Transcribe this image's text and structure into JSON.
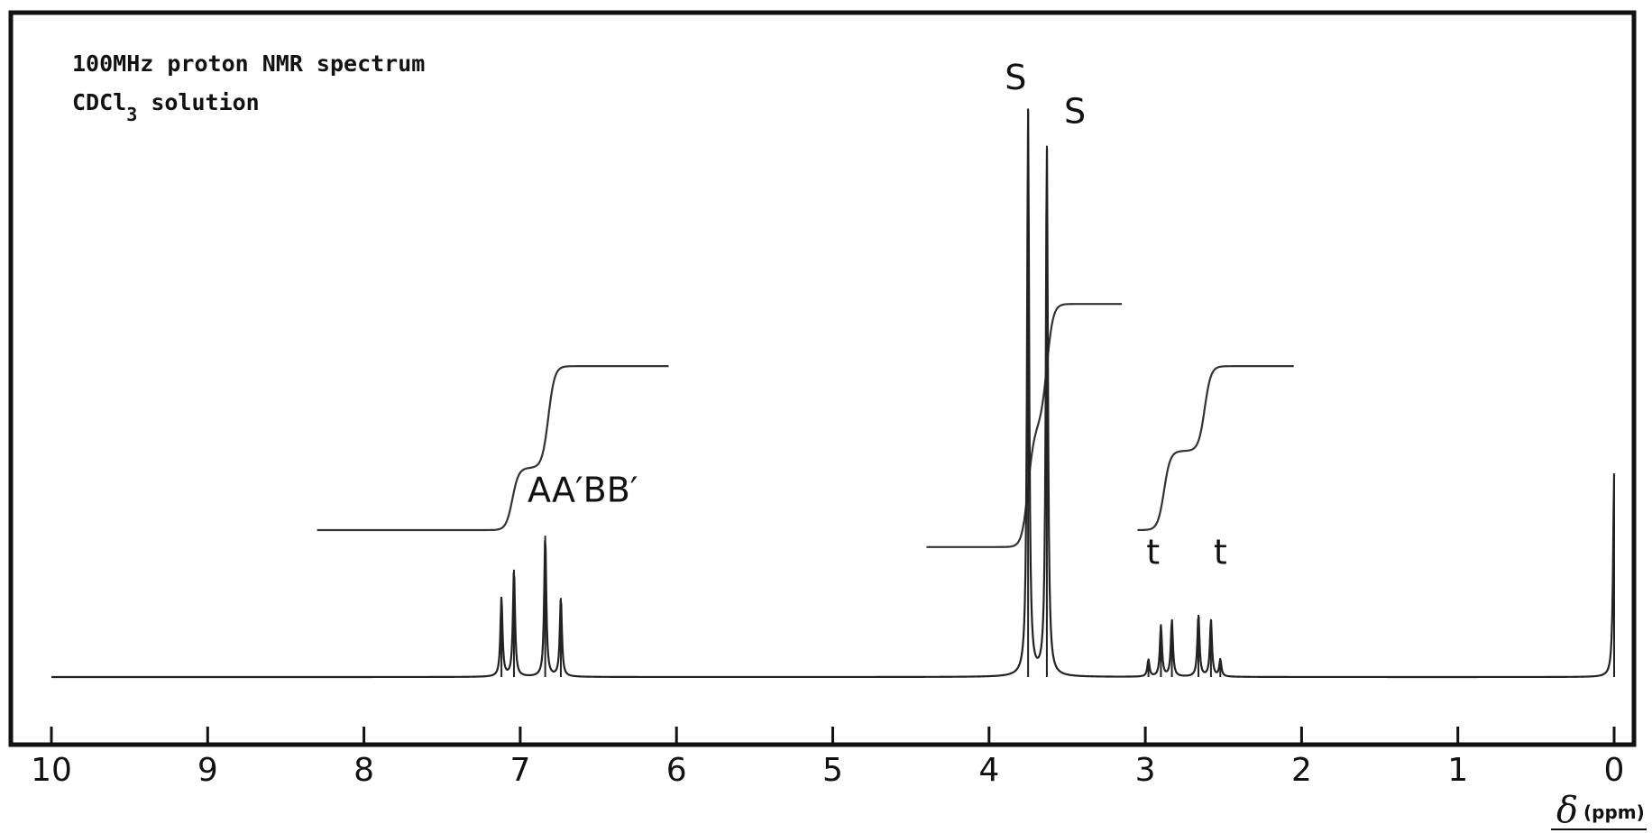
{
  "chart_data": {
    "type": "line",
    "title_lines": [
      "100MHz proton NMR spectrum",
      "CDCl",
      "3",
      " solution"
    ],
    "xlabel": {
      "symbol": "δ",
      "unit": "(ppm)"
    },
    "ylabel": "",
    "xlim": [
      10,
      0
    ],
    "x_reversed": true,
    "ticks": [
      "10",
      "9",
      "8",
      "7",
      "6",
      "5",
      "4",
      "3",
      "2",
      "1",
      "0"
    ],
    "tick_values": [
      10,
      9,
      8,
      7,
      6,
      5,
      4,
      3,
      2,
      1,
      0
    ],
    "peaks": [
      {
        "x": 7.12,
        "y": 0.14
      },
      {
        "x": 7.04,
        "y": 0.19
      },
      {
        "x": 6.84,
        "y": 0.25
      },
      {
        "x": 6.74,
        "y": 0.14
      },
      {
        "x": 3.75,
        "y": 1.0
      },
      {
        "x": 3.63,
        "y": 0.94
      },
      {
        "x": 2.98,
        "y": 0.03
      },
      {
        "x": 2.9,
        "y": 0.09
      },
      {
        "x": 2.83,
        "y": 0.1
      },
      {
        "x": 2.66,
        "y": 0.11
      },
      {
        "x": 2.58,
        "y": 0.1
      },
      {
        "x": 2.52,
        "y": 0.03
      },
      {
        "x": 0.0,
        "y": 0.36
      }
    ],
    "integrals": [
      {
        "from": 8.3,
        "to": 6.05,
        "y_start": 0.26,
        "y_end": 0.55,
        "steps": [
          [
            7.05,
            0.11
          ],
          [
            6.82,
            0.18
          ]
        ]
      },
      {
        "from": 4.4,
        "to": 3.15,
        "y_start": 0.23,
        "y_end": 0.66,
        "steps": [
          [
            3.75,
            0.42
          ],
          [
            3.63,
            0.43
          ]
        ]
      },
      {
        "from": 3.05,
        "to": 2.05,
        "y_start": 0.26,
        "y_end": 0.55,
        "steps": [
          [
            2.88,
            0.14
          ],
          [
            2.62,
            0.15
          ]
        ]
      }
    ],
    "annotations": [
      {
        "text": "AA′BB′",
        "x": 6.6,
        "y": 0.31
      },
      {
        "text": "S",
        "x": 3.83,
        "y": 1.04
      },
      {
        "text": "S",
        "x": 3.45,
        "y": 0.98
      },
      {
        "text": "t",
        "x": 2.95,
        "y": 0.2
      },
      {
        "text": "t",
        "x": 2.52,
        "y": 0.2
      }
    ],
    "grid": false,
    "legend": "none"
  }
}
